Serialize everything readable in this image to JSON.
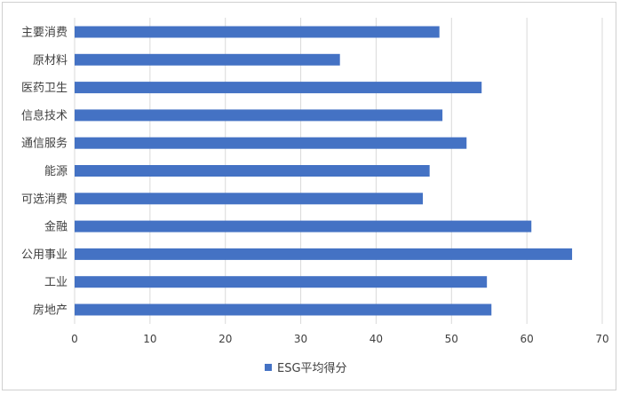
{
  "chart_data": {
    "type": "bar",
    "orientation": "horizontal",
    "categories": [
      "主要消费",
      "原材料",
      "医药卫生",
      "信息技术",
      "通信服务",
      "能源",
      "可选消费",
      "金融",
      "公用事业",
      "工业",
      "房地产"
    ],
    "series": [
      {
        "name": "ESG平均得分",
        "values": [
          48.4,
          35.2,
          54.0,
          48.8,
          52.0,
          47.1,
          46.2,
          60.6,
          66.0,
          54.7,
          55.3
        ],
        "color": "#4472C4"
      }
    ],
    "xlim": [
      0,
      70
    ],
    "x_ticks": [
      "0",
      "10",
      "20",
      "30",
      "40",
      "50",
      "60",
      "70"
    ],
    "grid": "vertical",
    "legend_position": "bottom",
    "axis_color": "#d9d9d9",
    "text_color": "#404040"
  }
}
